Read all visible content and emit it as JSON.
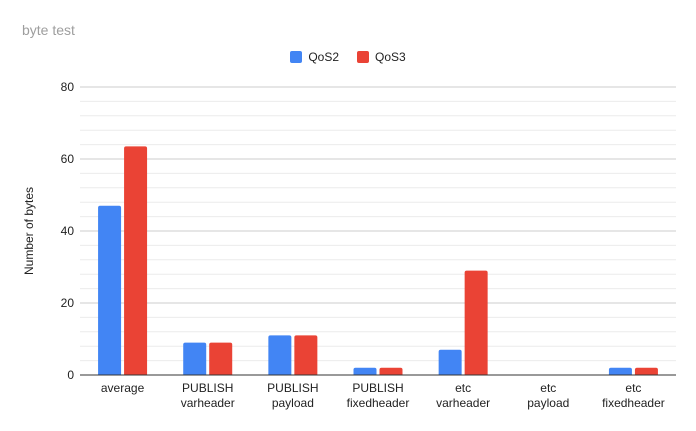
{
  "title": "byte test",
  "colors": {
    "QoS2": "#4285f4",
    "QoS3": "#ea4335",
    "grid_major": "#cccccc",
    "grid_minor": "#ebebeb",
    "axis": "#333333"
  },
  "chart_data": {
    "type": "bar",
    "title": "byte test",
    "xlabel": "",
    "ylabel": "Number of bytes",
    "ylim": [
      0,
      80
    ],
    "yticks": [
      0,
      20,
      40,
      60,
      80
    ],
    "grid": true,
    "legend_position": "top",
    "categories": [
      [
        "average"
      ],
      [
        "PUBLISH",
        "varheader"
      ],
      [
        "PUBLISH",
        "payload"
      ],
      [
        "PUBLISH",
        "fixedheader"
      ],
      [
        "etc",
        "varheader"
      ],
      [
        "etc",
        "payload"
      ],
      [
        "etc",
        "fixedheader"
      ]
    ],
    "series": [
      {
        "name": "QoS2",
        "color": "#4285f4",
        "values": [
          47,
          9,
          11,
          2,
          7,
          0,
          2
        ]
      },
      {
        "name": "QoS3",
        "color": "#ea4335",
        "values": [
          63.5,
          9,
          11,
          2,
          29,
          0,
          2
        ]
      }
    ]
  }
}
